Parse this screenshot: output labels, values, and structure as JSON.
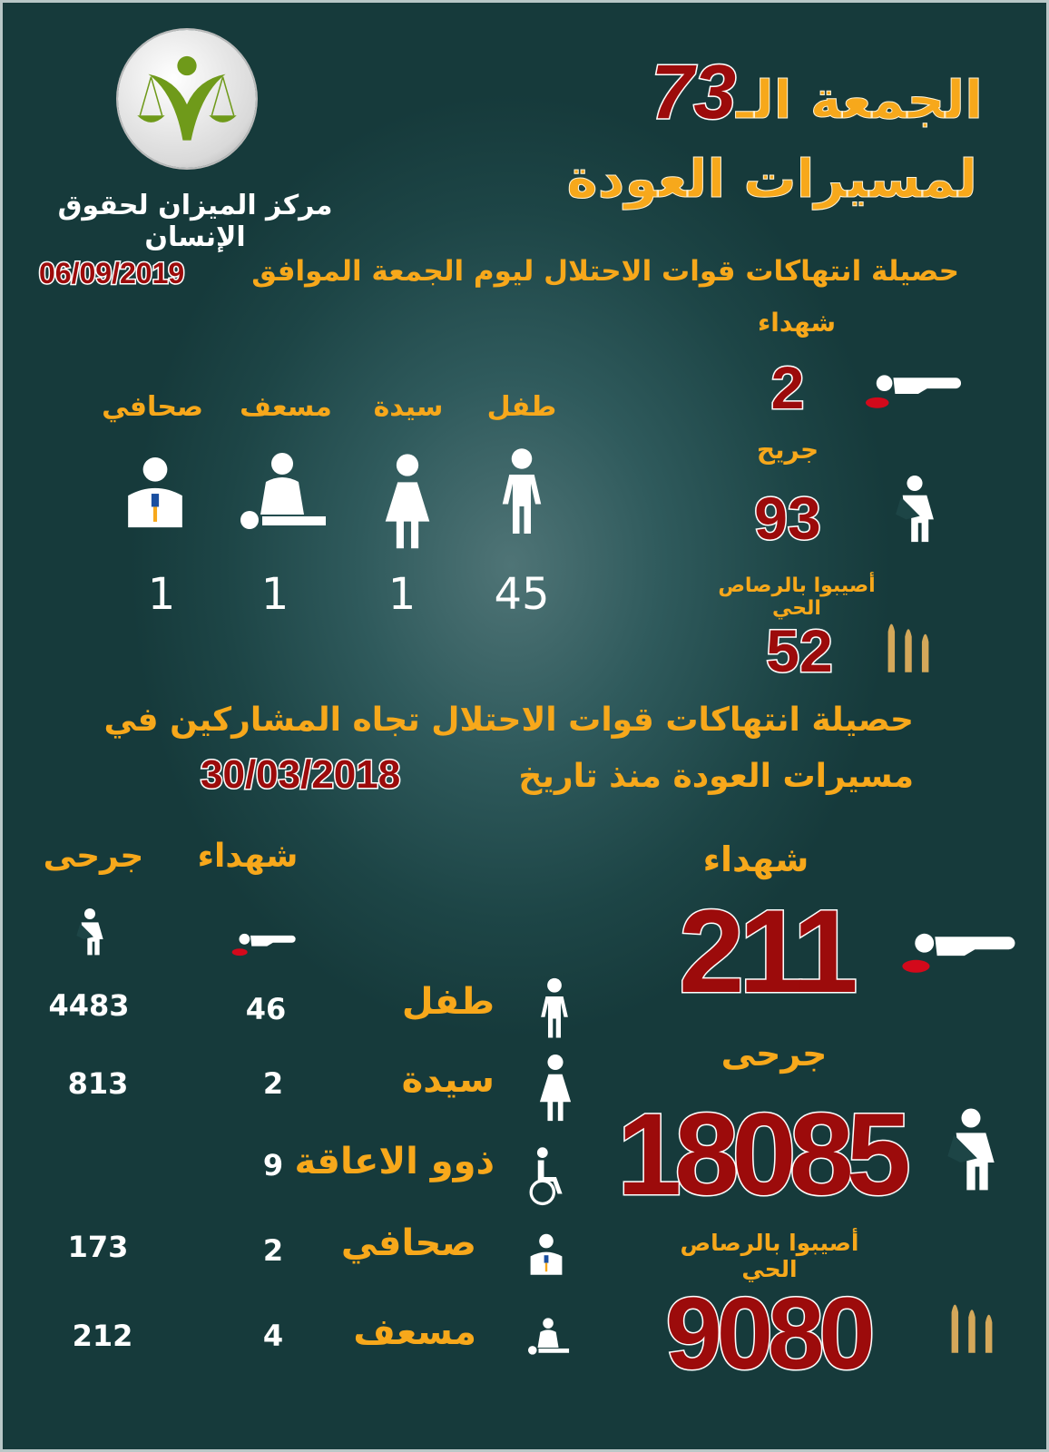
{
  "colors": {
    "accent": "#f7a81b",
    "number_red": "#9c0b0b",
    "background": "#1d4546",
    "text_white": "#ffffff"
  },
  "header": {
    "title_prefix": "الجمعة الـ",
    "title_number": "73",
    "title_line2": "لمسيرات العودة",
    "organization": "مركز الميزان لحقوق الإنسان",
    "logo": "scales-of-justice-logo"
  },
  "day": {
    "heading": "حصيلة انتهاكات قوات الاحتلال ليوم الجمعة الموافق",
    "date": "06/09/2019",
    "martyrs": {
      "label": "شهداء",
      "value": "2",
      "icon": "lying-person-icon"
    },
    "injured": {
      "label": "جريح",
      "value": "93",
      "icon": "injured-person-icon"
    },
    "live_fire": {
      "label": "أصيبوا بالرصاص الحي",
      "value": "52",
      "icon": "bullets-icon"
    },
    "categories": [
      {
        "label": "طفل",
        "value": "45",
        "icon": "child-icon"
      },
      {
        "label": "سيدة",
        "value": "1",
        "icon": "woman-icon"
      },
      {
        "label": "مسعف",
        "value": "1",
        "icon": "paramedic-icon"
      },
      {
        "label": "صحافي",
        "value": "1",
        "icon": "journalist-icon"
      }
    ]
  },
  "total": {
    "heading_line1": "حصيلة انتهاكات قوات الاحتلال تجاه المشاركين في",
    "heading_line2": "مسيرات العودة منذ تاريخ",
    "date": "30/03/2018",
    "martyrs": {
      "label": "شهداء",
      "value": "211"
    },
    "injured": {
      "label": "جرحى",
      "value": "18085"
    },
    "live_fire": {
      "label": "أصيبوا بالرصاص الحي",
      "value": "9080"
    },
    "table": {
      "col_martyrs": "شهداء",
      "col_injured": "جرحى",
      "rows": [
        {
          "label": "طفل",
          "martyrs": "46",
          "injured": "4483",
          "icon": "child-icon"
        },
        {
          "label": "سيدة",
          "martyrs": "2",
          "injured": "813",
          "icon": "woman-icon"
        },
        {
          "label": "ذوو الاعاقة",
          "martyrs": "9",
          "injured": "",
          "icon": "wheelchair-icon"
        },
        {
          "label": "صحافي",
          "martyrs": "2",
          "injured": "173",
          "icon": "journalist-icon"
        },
        {
          "label": "مسعف",
          "martyrs": "4",
          "injured": "212",
          "icon": "paramedic-icon"
        }
      ]
    }
  }
}
